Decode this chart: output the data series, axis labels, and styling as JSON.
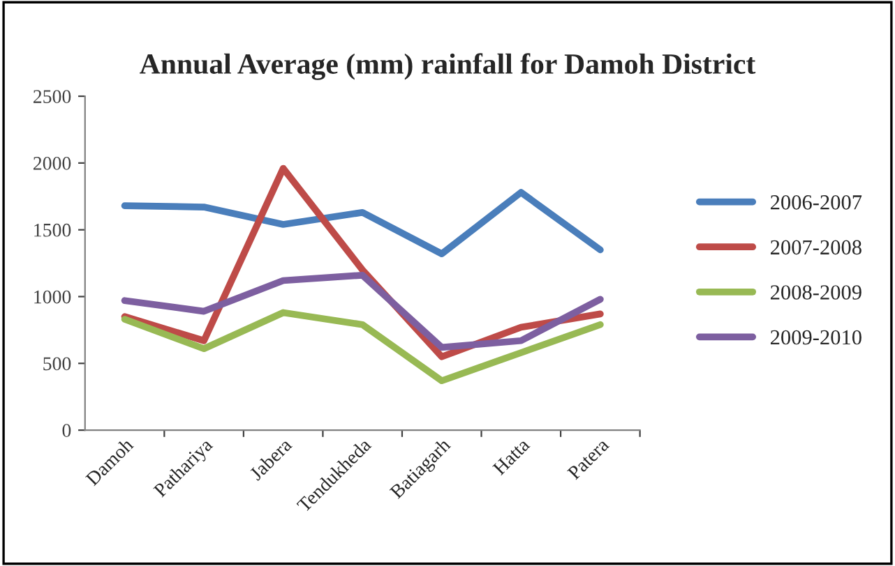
{
  "chart_data": {
    "type": "line",
    "title": "Annual Average (mm) rainfall for Damoh District",
    "categories": [
      "Damoh",
      "Pathariya",
      "Jabera",
      "Tendukheda",
      "Batiagarh",
      "Hatta",
      "Patera"
    ],
    "series": [
      {
        "name": "2006-2007",
        "color": "#4a7ebb",
        "values": [
          1680,
          1670,
          1540,
          1630,
          1320,
          1780,
          1350
        ]
      },
      {
        "name": "2007-2008",
        "color": "#be4b48",
        "values": [
          850,
          670,
          1960,
          1200,
          550,
          770,
          870
        ]
      },
      {
        "name": "2008-2009",
        "color": "#98b954",
        "values": [
          830,
          610,
          880,
          790,
          370,
          580,
          790
        ]
      },
      {
        "name": "2009-2010",
        "color": "#7d5fa0",
        "values": [
          970,
          890,
          1120,
          1160,
          620,
          670,
          980
        ]
      }
    ],
    "ylim": [
      0,
      2500
    ],
    "yticks": [
      0,
      500,
      1000,
      1500,
      2000,
      2500
    ],
    "grid": false,
    "legend": "right",
    "marker": "none",
    "line_style": "solid"
  }
}
